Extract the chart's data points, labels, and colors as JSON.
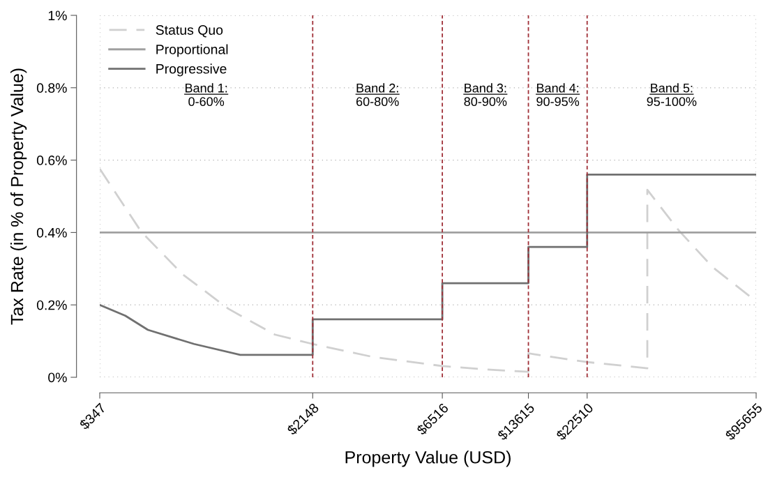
{
  "chart_data": {
    "type": "line",
    "xlabel": "Property Value (USD)",
    "ylabel": "Tax Rate (in % of Property Value)",
    "log": "x",
    "xlim": [
      347,
      95655
    ],
    "xticks": [
      {
        "value": 347,
        "label": "$347"
      },
      {
        "value": 2148,
        "label": "$2148"
      },
      {
        "value": 6516,
        "label": "$6516"
      },
      {
        "value": 13615,
        "label": "$13615"
      },
      {
        "value": 22510,
        "label": "$22510"
      },
      {
        "value": 95655,
        "label": "$95655"
      }
    ],
    "ylim": [
      0,
      1
    ],
    "yticks": [
      {
        "value": 0,
        "label": "0%"
      },
      {
        "value": 0.2,
        "label": "0.2%"
      },
      {
        "value": 0.4,
        "label": "0.4%"
      },
      {
        "value": 0.6,
        "label": "0.6%"
      },
      {
        "value": 0.8,
        "label": "0.8%"
      },
      {
        "value": 1,
        "label": "1%"
      }
    ],
    "grid": true,
    "legend": "top left",
    "series": [
      {
        "name": "Status Quo",
        "color": "#d0d0d0",
        "line_style": "dashed",
        "x": [
          347,
          494,
          704,
          1045,
          1552,
          2148,
          3604,
          6516,
          9263,
          13615,
          13615,
          22510,
          37680,
          37680,
          49150,
          65950,
          95655
        ],
        "values": [
          0.576,
          0.403,
          0.285,
          0.189,
          0.118,
          0.092,
          0.056,
          0.031,
          0.022,
          0.015,
          0.066,
          0.042,
          0.025,
          0.518,
          0.407,
          0.304,
          0.21
        ]
      },
      {
        "name": "Proportional",
        "color": "#a0a0a0",
        "line_style": "solid",
        "x": [
          347,
          95655
        ],
        "values": [
          0.4,
          0.4
        ]
      },
      {
        "name": "Progressive",
        "color": "#707070",
        "line_style": "solid",
        "x": [
          347,
          432,
          524,
          778,
          1155,
          2148,
          2148,
          6516,
          6516,
          13615,
          13615,
          22510,
          22510,
          95655
        ],
        "values": [
          0.2,
          0.17,
          0.131,
          0.092,
          0.062,
          0.062,
          0.16,
          0.16,
          0.26,
          0.26,
          0.36,
          0.36,
          0.56,
          0.56
        ]
      }
    ],
    "ref_lines": [
      {
        "axis": "x",
        "value": 2148,
        "color": "#a03038",
        "line_style": "dashed"
      },
      {
        "axis": "x",
        "value": 6516,
        "color": "#a03038",
        "line_style": "dashed"
      },
      {
        "axis": "x",
        "value": 13615,
        "color": "#a03038",
        "line_style": "dashed"
      },
      {
        "axis": "x",
        "value": 22510,
        "color": "#a03038",
        "line_style": "dashed"
      }
    ],
    "annotations": [
      "Band 1:\n0-60%",
      "Band 2:\n60-80%",
      "Band 3:\n80-90%",
      "Band 4:\n90-95%",
      "Band 5:\n95-100%"
    ]
  }
}
